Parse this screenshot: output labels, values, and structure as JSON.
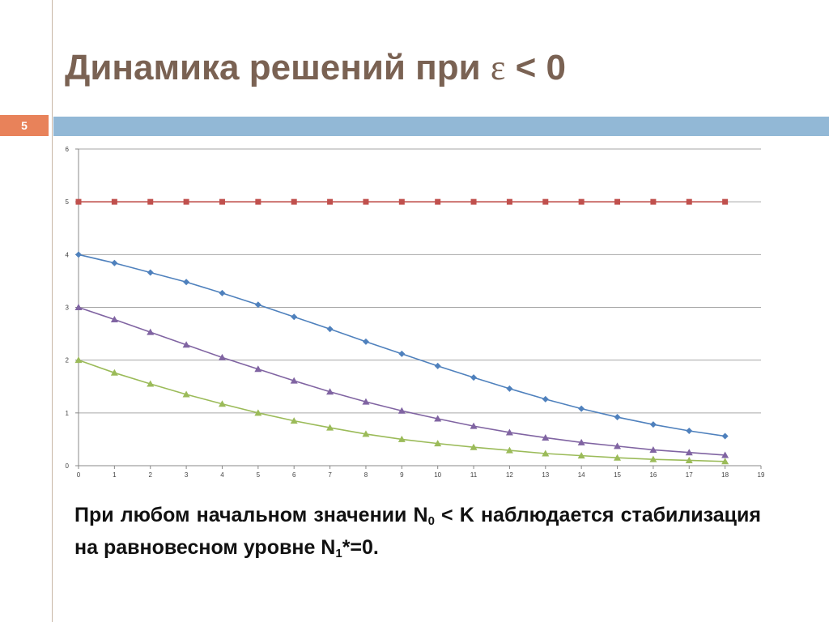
{
  "slide": {
    "title_main": "Динамика решений при ",
    "title_symbol": "ε",
    "title_tail": " < 0",
    "number": "5"
  },
  "caption": {
    "part1": "При любом начальном значении N",
    "sub1": "0",
    "part2": " < K наблюдается стабилизация на равновесном уровне N",
    "sub2": "1",
    "part3": "*=0."
  },
  "colors": {
    "title": "#7a6253",
    "slide_number_bg": "#e8825a",
    "accent_bar": "#92b8d6",
    "series_red": "#c0504d",
    "series_blue": "#4f81bd",
    "series_purple": "#8064a2",
    "series_green": "#9bbb59",
    "gridline": "#a6a6a6"
  },
  "chart_data": {
    "type": "line",
    "title": "",
    "xlabel": "",
    "ylabel": "",
    "xlim": [
      0,
      19
    ],
    "ylim": [
      0,
      6
    ],
    "x_ticks": [
      0,
      1,
      2,
      3,
      4,
      5,
      6,
      7,
      8,
      9,
      10,
      11,
      12,
      13,
      14,
      15,
      16,
      17,
      18,
      19
    ],
    "y_ticks": [
      0,
      1,
      2,
      3,
      4,
      5,
      6
    ],
    "grid": "horizontal",
    "legend": "none",
    "x": [
      0,
      1,
      2,
      3,
      4,
      5,
      6,
      7,
      8,
      9,
      10,
      11,
      12,
      13,
      14,
      15,
      16,
      17,
      18
    ],
    "series": [
      {
        "color": "#c0504d",
        "marker": "square",
        "values": [
          5,
          5,
          5,
          5,
          5,
          5,
          5,
          5,
          5,
          5,
          5,
          5,
          5,
          5,
          5,
          5,
          5,
          5,
          5
        ]
      },
      {
        "color": "#4f81bd",
        "marker": "diamond",
        "values": [
          4.0,
          3.84,
          3.66,
          3.48,
          3.27,
          3.05,
          2.82,
          2.59,
          2.35,
          2.12,
          1.89,
          1.67,
          1.46,
          1.26,
          1.08,
          0.92,
          0.78,
          0.66,
          0.56
        ]
      },
      {
        "color": "#8064a2",
        "marker": "triangle",
        "values": [
          3.0,
          2.77,
          2.53,
          2.29,
          2.05,
          1.83,
          1.61,
          1.4,
          1.21,
          1.04,
          0.89,
          0.75,
          0.63,
          0.53,
          0.44,
          0.37,
          0.3,
          0.25,
          0.2
        ]
      },
      {
        "color": "#9bbb59",
        "marker": "triangle",
        "values": [
          2.0,
          1.76,
          1.55,
          1.35,
          1.17,
          1.0,
          0.85,
          0.72,
          0.6,
          0.5,
          0.42,
          0.35,
          0.29,
          0.23,
          0.19,
          0.15,
          0.12,
          0.1,
          0.08
        ]
      }
    ]
  }
}
